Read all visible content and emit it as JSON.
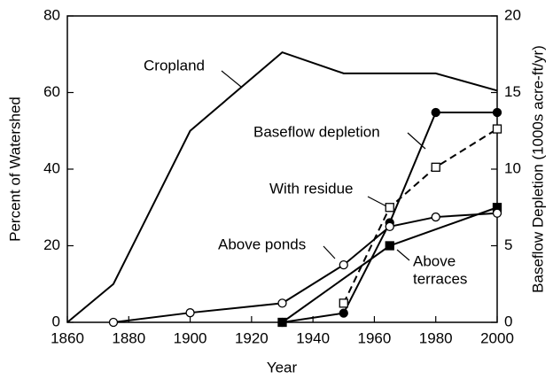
{
  "chart_data": {
    "type": "line",
    "xlabel": "Year",
    "ylabel": "Percent of Watershed",
    "y2label": "Baseflow Depletion (1000s acre-ft/yr)",
    "xlim": [
      1860,
      2000
    ],
    "xticks": [
      1860,
      1880,
      1900,
      1920,
      1940,
      1960,
      1980,
      2000
    ],
    "ylim": [
      0,
      80
    ],
    "yticks": [
      0,
      20,
      40,
      60,
      80
    ],
    "y2lim": [
      0,
      20
    ],
    "y2ticks": [
      0,
      5,
      10,
      15,
      20
    ],
    "series": [
      {
        "name": "Cropland",
        "color": "#000000",
        "marker": "none",
        "dash": false,
        "x": [
          1860,
          1875,
          1900,
          1930,
          1950,
          1980,
          2000
        ],
        "values": [
          0,
          10,
          50,
          70.5,
          65,
          65,
          60.5
        ]
      },
      {
        "name": "Baseflow depletion",
        "color": "#000000",
        "marker": "filled-circle",
        "dash": false,
        "axis": "y2",
        "x": [
          1930,
          1950,
          1965,
          1980,
          2000
        ],
        "values": [
          0,
          0.6,
          6.5,
          13.7,
          13.7
        ]
      },
      {
        "name": "With residue",
        "color": "#000000",
        "marker": "open-square",
        "dash": true,
        "x": [
          1950,
          1965,
          1980,
          2000
        ],
        "values": [
          5,
          30,
          40.5,
          50.5
        ]
      },
      {
        "name": "Above terraces",
        "color": "#000000",
        "marker": "filled-square",
        "dash": false,
        "x": [
          1930,
          1965,
          2000
        ],
        "values": [
          0,
          20,
          30
        ]
      },
      {
        "name": "Above ponds",
        "color": "#000000",
        "marker": "open-circle",
        "dash": false,
        "x": [
          1875,
          1900,
          1930,
          1950,
          1965,
          1980,
          2000
        ],
        "values": [
          0,
          2.5,
          5,
          15,
          25,
          27.5,
          28.5
        ]
      }
    ],
    "annotations": [
      "Cropland",
      "Baseflow depletion",
      "With residue",
      "Above ponds",
      [
        "Above",
        "terraces"
      ]
    ]
  }
}
